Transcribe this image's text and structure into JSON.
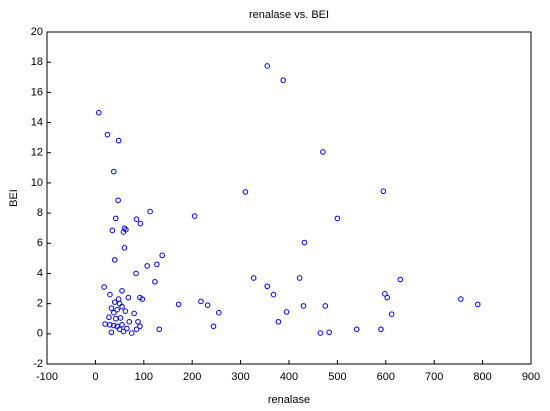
{
  "chart_data": {
    "type": "scatter",
    "title": "renalase vs. BEI",
    "x_label": "renalase",
    "y_label": "BEI",
    "color": "#0000ff",
    "grid": false,
    "xlim": [
      -100,
      900
    ],
    "xticks": [
      -100,
      0,
      100,
      200,
      300,
      400,
      500,
      600,
      700,
      800,
      900
    ],
    "ylim": [
      -2,
      20
    ],
    "yticks": [
      -2,
      0,
      2,
      4,
      6,
      8,
      10,
      12,
      14,
      16,
      18,
      20
    ],
    "x": [
      7,
      25,
      48,
      38,
      47,
      113,
      42,
      85,
      205,
      60,
      35,
      58,
      93,
      63,
      60,
      138,
      40,
      127,
      107,
      84,
      123,
      18,
      55,
      30,
      48,
      68,
      40,
      92,
      97,
      172,
      218,
      232,
      50,
      33,
      45,
      55,
      62,
      80,
      38,
      28,
      42,
      52,
      70,
      30,
      20,
      45,
      38,
      55,
      88,
      92,
      85,
      65,
      50,
      75,
      33,
      58,
      132,
      255,
      244,
      310,
      355,
      388,
      470,
      595,
      500,
      432,
      327,
      355,
      368,
      422,
      395,
      378,
      430,
      475,
      465,
      483,
      540,
      590,
      598,
      603,
      612,
      630,
      755,
      790
    ],
    "y": [
      14.65,
      13.2,
      12.8,
      10.75,
      8.85,
      8.1,
      7.65,
      7.6,
      7.8,
      7.0,
      6.85,
      6.75,
      7.3,
      6.9,
      5.7,
      5.2,
      4.9,
      4.6,
      4.5,
      4.0,
      3.45,
      3.1,
      2.85,
      2.6,
      2.3,
      2.4,
      2.1,
      2.4,
      2.3,
      1.95,
      2.15,
      1.9,
      2.0,
      1.7,
      1.6,
      1.8,
      1.5,
      1.35,
      1.4,
      1.1,
      1.0,
      1.05,
      0.8,
      0.6,
      0.65,
      0.5,
      0.55,
      0.6,
      0.8,
      0.5,
      0.3,
      0.35,
      0.3,
      0.05,
      0.1,
      0.15,
      0.3,
      1.4,
      0.5,
      9.4,
      17.75,
      16.8,
      12.05,
      9.45,
      7.65,
      6.05,
      3.7,
      3.15,
      2.6,
      3.7,
      1.45,
      0.8,
      1.85,
      1.85,
      0.05,
      0.1,
      0.3,
      0.3,
      2.65,
      2.4,
      1.3,
      3.6,
      2.3,
      1.95
    ]
  }
}
